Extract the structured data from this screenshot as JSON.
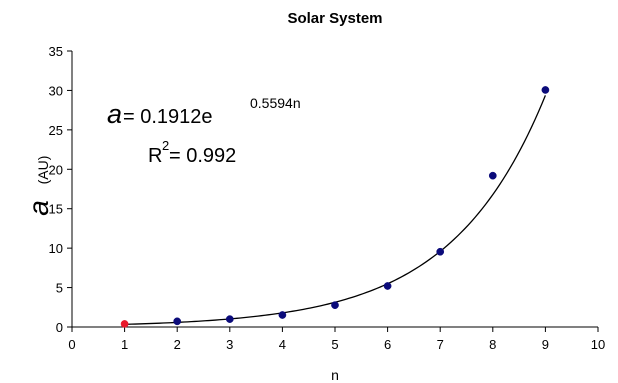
{
  "chart_data": {
    "type": "scatter",
    "title": "Solar System",
    "xlabel": "n",
    "ylabel_symbol": "a",
    "ylabel_unit": "(AU)",
    "xlim": [
      0,
      10
    ],
    "ylim": [
      0,
      35
    ],
    "xticks": [
      0,
      1,
      2,
      3,
      4,
      5,
      6,
      7,
      8,
      9,
      10
    ],
    "yticks": [
      0,
      5,
      10,
      15,
      20,
      25,
      30,
      35
    ],
    "grid": false,
    "series": [
      {
        "values_x": [
          1,
          2,
          3,
          4,
          5,
          6,
          7,
          8,
          9
        ],
        "values_y": [
          0.39,
          0.72,
          1.0,
          1.52,
          2.77,
          5.2,
          9.54,
          19.19,
          30.06
        ],
        "colors": [
          "#e8192c",
          "#0b0b7a",
          "#0b0b7a",
          "#0b0b7a",
          "#0b0b7a",
          "#0b0b7a",
          "#0b0b7a",
          "#0b0b7a",
          "#0b0b7a"
        ]
      }
    ],
    "fit": {
      "type": "exponential",
      "coefficient": 0.1912,
      "rate": 0.5594,
      "x_range": [
        1,
        9
      ],
      "color": "#000000"
    },
    "annotations": {
      "equation_lhs": "a",
      "equation_mid": " = 0.1912e",
      "equation_exp": "0.5594n",
      "r2_base": "R",
      "r2_sup": "2",
      "r2_rest": " = 0.992"
    }
  }
}
